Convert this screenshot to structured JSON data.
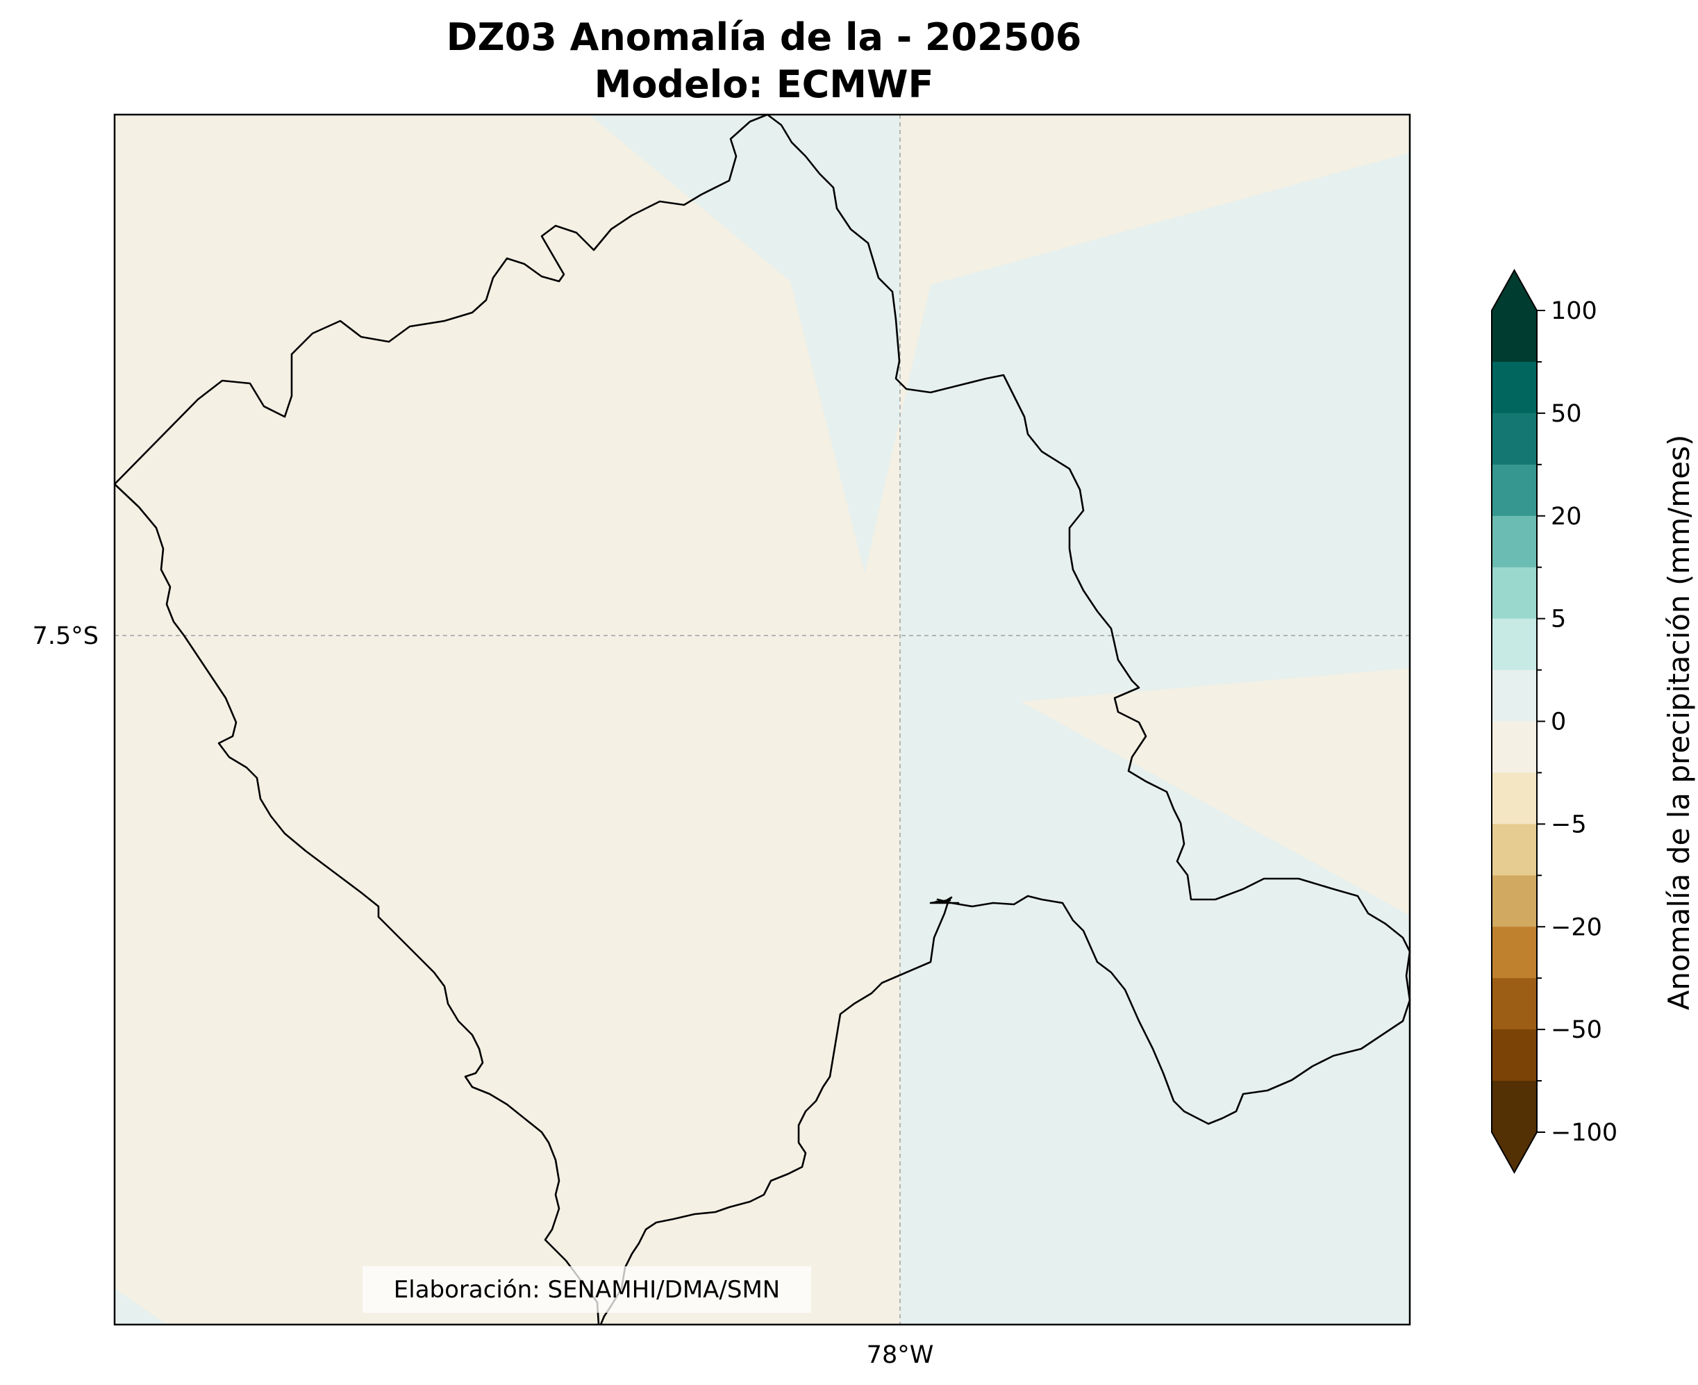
{
  "title": {
    "line1": "DZ03 Anomalía de la - 202506",
    "line2": "Modelo: ECMWF"
  },
  "map": {
    "lat_label": "7.5°S",
    "lon_label": "78°W",
    "background_color": "#f4f0e4",
    "near_zero_positive_color": "#e6f0ee",
    "outline_color": "#000000",
    "credit": "Elaboración: SENAMHI/DMA/SMN"
  },
  "colorbar": {
    "label": "Anomalía de la precipitación (mm/mes)",
    "ticks": [
      "100",
      "50",
      "20",
      "5",
      "0",
      "−5",
      "−20",
      "−50",
      "−100"
    ],
    "colors_top_to_bottom": [
      "#003c30",
      "#01665e",
      "#157771",
      "#35978f",
      "#6bbcb2",
      "#9ad8cd",
      "#c7eae5",
      "#e6f0ee",
      "#f4f0e4",
      "#f4e6c2",
      "#e6cc90",
      "#d2a960",
      "#bf812d",
      "#9c5d14",
      "#7b4305",
      "#543005"
    ],
    "over_color": "#003c30",
    "under_color": "#543005"
  }
}
